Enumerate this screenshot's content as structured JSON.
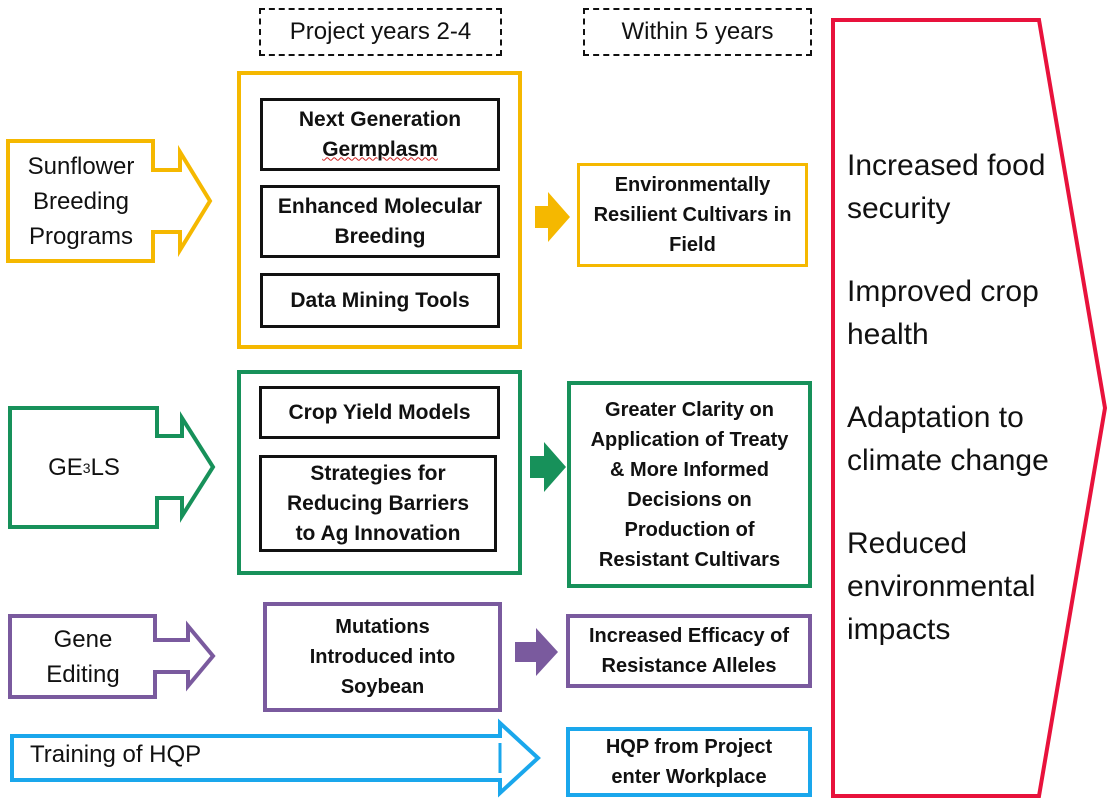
{
  "headers": {
    "project_years": "Project years 2-4",
    "within_years": "Within 5 years"
  },
  "sources": {
    "sunflower": "Sunflower Breeding Programs",
    "ge3ls_prefix": "GE",
    "ge3ls_sup": "3",
    "ge3ls_suffix": "LS",
    "gene_editing": "Gene Editing",
    "training": "Training of HQP"
  },
  "activities": {
    "next_gen_1": "Next Generation",
    "next_gen_2": "Germplasm",
    "molecular": "Enhanced Molecular Breeding",
    "data_mining": "Data Mining Tools",
    "crop_yield": "Crop Yield Models",
    "strategies": "Strategies for Reducing Barriers to Ag Innovation",
    "mutations": "Mutations Introduced into Soybean"
  },
  "outcomes": {
    "resilient": "Environmentally Resilient Cultivars in Field",
    "clarity": "Greater Clarity on Application of Treaty & More Informed Decisions on Production of Resistant Cultivars",
    "efficacy": "Increased Efficacy of Resistance Alleles",
    "hqp": "HQP from Project enter Workplace"
  },
  "impacts": [
    "Increased food security",
    "Improved crop health",
    "Adaptation to climate change",
    "Reduced environmental impacts"
  ],
  "colors": {
    "yellow": "#f5b800",
    "green": "#17915a",
    "purple": "#7a5a9e",
    "blue": "#1aa7ec",
    "red": "#e8123c"
  }
}
